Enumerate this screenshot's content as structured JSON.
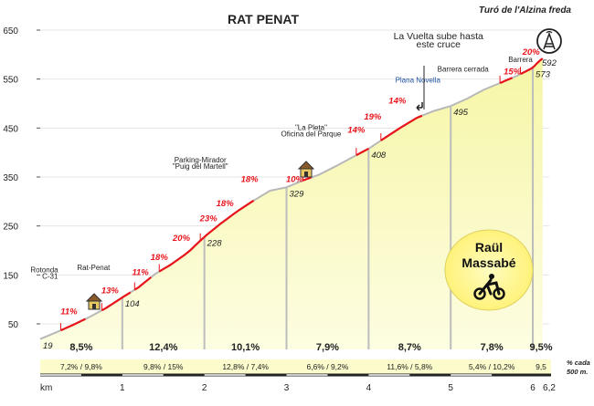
{
  "chart_data": {
    "type": "area",
    "title": "RAT PENAT",
    "subtitle": "Turó de l'Alzina freda",
    "xlabel": "km",
    "ylabel": "",
    "xlim": [
      0,
      6.2
    ],
    "ylim": [
      0,
      650
    ],
    "y_ticks": [
      {
        "label": "650",
        "v": 650
      },
      {
        "label": "550",
        "v": 550
      },
      {
        "label": "450",
        "v": 450
      },
      {
        "label": "350",
        "v": 350
      },
      {
        "label": "250",
        "v": 250
      },
      {
        "label": "150",
        "v": 150
      },
      {
        "label": "50",
        "v": 50
      }
    ],
    "x_ticks": [
      {
        "label": "1",
        "v": 1
      },
      {
        "label": "2",
        "v": 2
      },
      {
        "label": "3",
        "v": 3
      },
      {
        "label": "4",
        "v": 4
      },
      {
        "label": "5",
        "v": 5
      },
      {
        "label": "6",
        "v": 6
      },
      {
        "label": "6,2",
        "v": 6.2
      }
    ],
    "profile": [
      [
        0.0,
        19
      ],
      [
        0.2,
        33
      ],
      [
        0.4,
        48
      ],
      [
        0.6,
        64
      ],
      [
        0.8,
        82
      ],
      [
        1.0,
        104
      ],
      [
        1.2,
        125
      ],
      [
        1.4,
        152
      ],
      [
        1.6,
        172
      ],
      [
        1.8,
        196
      ],
      [
        2.0,
        228
      ],
      [
        2.2,
        255
      ],
      [
        2.4,
        280
      ],
      [
        2.6,
        302
      ],
      [
        2.8,
        322
      ],
      [
        3.0,
        329
      ],
      [
        3.2,
        343
      ],
      [
        3.4,
        355
      ],
      [
        3.6,
        372
      ],
      [
        3.8,
        390
      ],
      [
        4.0,
        408
      ],
      [
        4.2,
        430
      ],
      [
        4.4,
        452
      ],
      [
        4.6,
        472
      ],
      [
        4.8,
        485
      ],
      [
        5.0,
        495
      ],
      [
        5.2,
        510
      ],
      [
        5.4,
        528
      ],
      [
        5.6,
        542
      ],
      [
        5.8,
        556
      ],
      [
        6.0,
        573
      ],
      [
        6.05,
        582
      ],
      [
        6.1,
        590
      ],
      [
        6.12,
        592
      ]
    ],
    "profile_colors": {
      "fill_top": "#f6f6a6",
      "fill_bottom": "#fdfde2",
      "road": "#e8141b",
      "track": "#bdbdbd"
    },
    "red_segments": [
      [
        0.25,
        0.55
      ],
      [
        0.75,
        1.1
      ],
      [
        1.15,
        1.35
      ],
      [
        1.45,
        1.95
      ],
      [
        1.95,
        2.6
      ],
      [
        3.2,
        3.3
      ],
      [
        3.85,
        4.0
      ],
      [
        4.15,
        4.65
      ],
      [
        5.6,
        5.75
      ],
      [
        5.85,
        6.12
      ]
    ],
    "elevation_labels": [
      {
        "x": 0.0,
        "y": 19,
        "text": "19"
      },
      {
        "x": 1.0,
        "y": 104,
        "text": "104"
      },
      {
        "x": 2.0,
        "y": 228,
        "text": "228"
      },
      {
        "x": 3.0,
        "y": 329,
        "text": "329"
      },
      {
        "x": 4.0,
        "y": 408,
        "text": "408"
      },
      {
        "x": 5.0,
        "y": 495,
        "text": "495"
      },
      {
        "x": 6.0,
        "y": 573,
        "text": "573"
      },
      {
        "x": 6.2,
        "y": 592,
        "text": "592"
      }
    ],
    "gradient_labels": [
      {
        "x": 0.35,
        "y": 70,
        "text": "11%"
      },
      {
        "x": 0.85,
        "y": 112,
        "text": "13%"
      },
      {
        "x": 1.22,
        "y": 150,
        "text": "11%"
      },
      {
        "x": 1.45,
        "y": 180,
        "text": "18%"
      },
      {
        "x": 1.72,
        "y": 220,
        "text": "20%"
      },
      {
        "x": 2.05,
        "y": 260,
        "text": "23%"
      },
      {
        "x": 2.25,
        "y": 290,
        "text": "18%"
      },
      {
        "x": 2.55,
        "y": 340,
        "text": "18%"
      },
      {
        "x": 3.1,
        "y": 340,
        "text": "10%"
      },
      {
        "x": 3.85,
        "y": 440,
        "text": "14%"
      },
      {
        "x": 4.05,
        "y": 467,
        "text": "19%"
      },
      {
        "x": 4.35,
        "y": 500,
        "text": "14%"
      },
      {
        "x": 5.75,
        "y": 560,
        "text": "15%"
      },
      {
        "x": 5.98,
        "y": 600,
        "text": "20%"
      }
    ],
    "annotations": [
      {
        "text": "Rotonda",
        "x": 0.05,
        "y": 155
      },
      {
        "text": "C-31",
        "x": 0.12,
        "y": 142
      },
      {
        "text": "Rat-Penat",
        "x": 0.65,
        "y": 160
      },
      {
        "text": "Parking-Mirador",
        "x": 1.95,
        "y": 380
      },
      {
        "text": "\"Puig del Martell\"",
        "x": 1.95,
        "y": 367
      },
      {
        "text": "\"La Pleta\"",
        "x": 3.3,
        "y": 446
      },
      {
        "text": "Oficina del Parque",
        "x": 3.3,
        "y": 433
      },
      {
        "text": "La Vuelta sube hasta",
        "x": 4.85,
        "y": 631
      },
      {
        "text": "este cruce",
        "x": 4.85,
        "y": 615
      },
      {
        "text": "Plana Novella",
        "x": 4.6,
        "y": 543
      },
      {
        "text": "Barrera cerrada",
        "x": 5.15,
        "y": 565
      },
      {
        "text": "Barrera",
        "x": 5.85,
        "y": 585
      }
    ],
    "segment_avgs": [
      "8,5%",
      "12,4%",
      "10,1%",
      "7,9%",
      "8,7%",
      "7,8%",
      "9,5%"
    ],
    "half_km": [
      "7,2%  /  9,8%",
      "9,8%  /  15%",
      "12,8%  /  7,4%",
      "6,6%  /  9,2%",
      "11,6%  /  5,8%",
      "5,4%  /  10,2%",
      "9,5"
    ],
    "legend_note": [
      "% cada",
      "500 m."
    ],
    "author": [
      "Raül",
      "Massabé"
    ]
  }
}
